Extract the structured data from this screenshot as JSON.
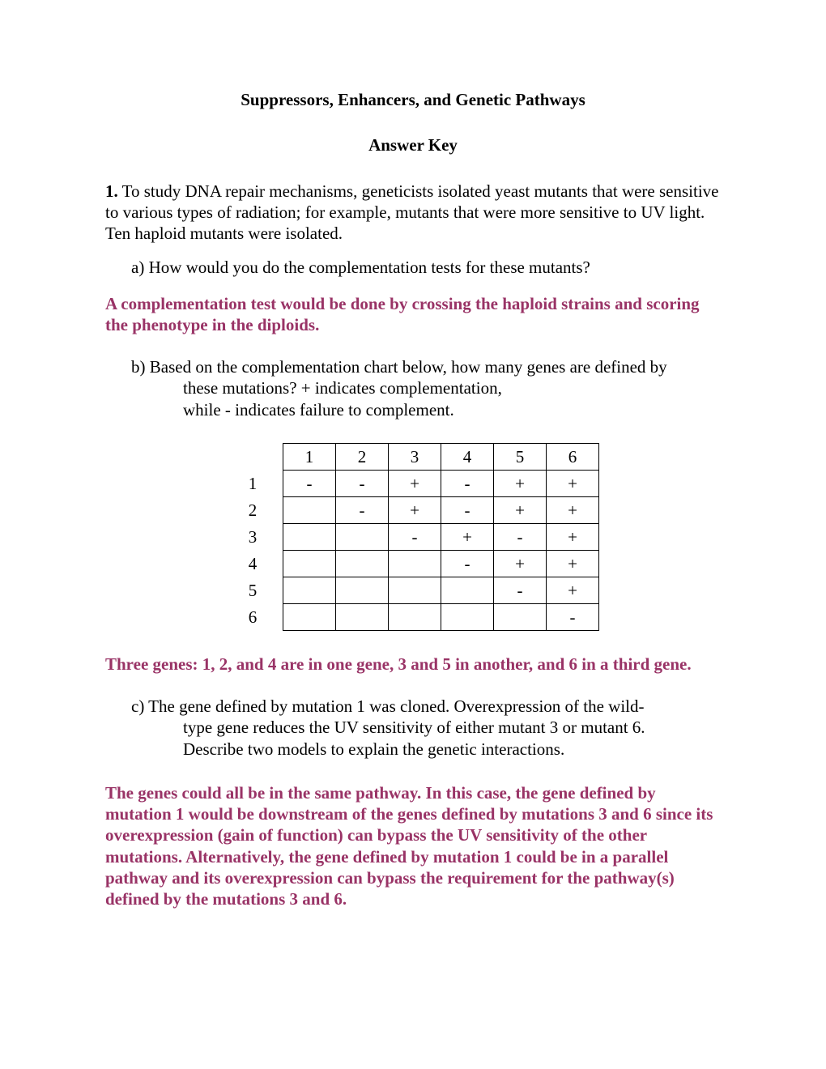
{
  "title": "Suppressors, Enhancers, and Genetic Pathways",
  "subtitle": "Answer Key",
  "q1": {
    "num": "1.",
    "intro": " To study DNA repair mechanisms, geneticists isolated yeast mutants that were sensitive to various types of radiation; for example, mutants that were more sensitive to UV light. Ten haploid mutants were isolated.",
    "a": "a)  How would you do the complementation tests for these mutants?",
    "a_ans": "A complementation test would be done by crossing the haploid strains and scoring the phenotype in the diploids.",
    "b_lead": "b) Based on the complementation chart below, how many genes are defined by",
    "b_line2": "these mutations? + indicates complementation,",
    "b_line3": "while - indicates failure to complement.",
    "b_ans": "Three genes: 1, 2, and 4 are in one gene, 3 and 5 in another, and 6 in a third gene.",
    "c_lead": "c) The gene defined by mutation 1 was cloned.  Overexpression of the wild-",
    "c_line2": "type gene reduces the UV sensitivity of either mutant 3 or mutant 6.",
    "c_line3": "Describe two models to explain the genetic interactions.",
    "c_ans": "The genes could all be in the same pathway. In this case, the gene defined by mutation 1 would be downstream of the genes defined by mutations 3 and 6 since its overexpression (gain of function) can bypass the UV sensitivity of the other mutations.  Alternatively, the gene defined by mutation 1 could be in a parallel pathway and its overexpression can bypass the requirement for the pathway(s) defined by the mutations 3 and 6."
  },
  "table": {
    "headers": [
      "1",
      "2",
      "3",
      "4",
      "5",
      "6"
    ],
    "rows": [
      {
        "label": "1",
        "cells": [
          "-",
          "-",
          "+",
          "-",
          "+",
          "+"
        ]
      },
      {
        "label": "2",
        "cells": [
          "",
          "-",
          "+",
          "-",
          "+",
          "+"
        ]
      },
      {
        "label": "3",
        "cells": [
          "",
          "",
          "-",
          "+",
          "-",
          "+"
        ]
      },
      {
        "label": "4",
        "cells": [
          "",
          "",
          "",
          "-",
          "+",
          "+"
        ]
      },
      {
        "label": "5",
        "cells": [
          "",
          "",
          "",
          "",
          "-",
          "+"
        ]
      },
      {
        "label": "6",
        "cells": [
          "",
          "",
          "",
          "",
          "",
          "-"
        ]
      }
    ]
  },
  "colors": {
    "answer": "#993366",
    "text": "#000000",
    "background": "#ffffff",
    "border": "#000000"
  }
}
